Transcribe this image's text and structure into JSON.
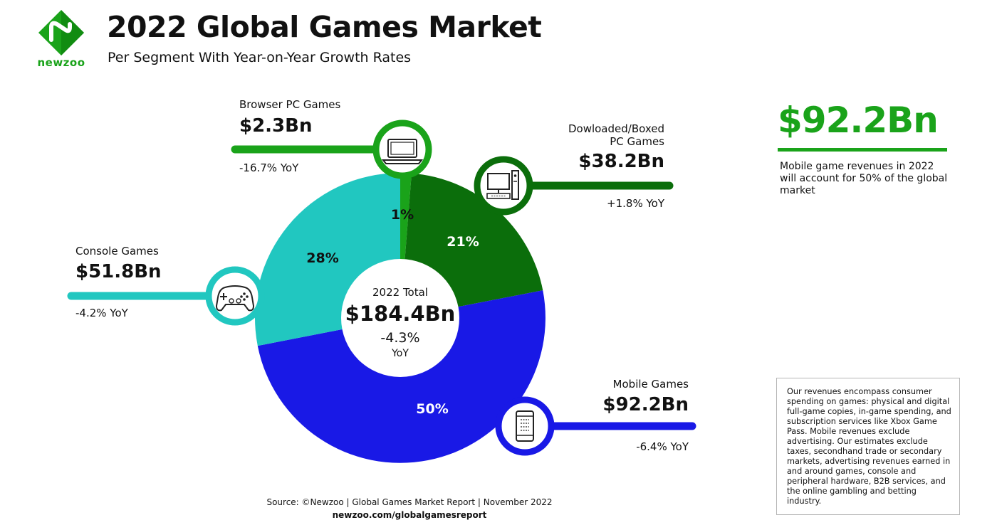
{
  "brand": {
    "name": "newzoo"
  },
  "header": {
    "title": "2022 Global Games Market",
    "subtitle": "Per Segment With Year-on-Year Growth Rates"
  },
  "colors": {
    "brand_green": "#1aa31a",
    "browser": "#1aa31a",
    "downloaded": "#0b6e0b",
    "mobile": "#1919e6",
    "console": "#21c7c0"
  },
  "chart_data": {
    "type": "pie",
    "title": "2022 Global Games Market",
    "subtitle": "Per Segment With Year-on-Year Growth Rates",
    "categories": [
      "Browser PC Games",
      "Dowloaded/Boxed PC Games",
      "Mobile Games",
      "Console Games"
    ],
    "values": [
      2.3,
      38.2,
      92.2,
      51.8
    ],
    "value_labels": [
      "$2.3Bn",
      "$38.2Bn",
      "$92.2Bn",
      "$51.8Bn"
    ],
    "percent_labels": [
      "1%",
      "21%",
      "50%",
      "28%"
    ],
    "yoy": [
      "-16.7% YoY",
      "+1.8% YoY",
      "-6.4% YoY",
      "-4.2% YoY"
    ],
    "colors": [
      "#1aa31a",
      "#0b6e0b",
      "#1919e6",
      "#21c7c0"
    ],
    "icons": [
      "laptop-icon",
      "desktop-pc-icon",
      "smartphone-icon",
      "gamepad-icon"
    ],
    "center": {
      "label": "2022 Total",
      "value": "$184.4Bn",
      "growth": "-4.3%",
      "growth_unit": "YoY"
    }
  },
  "segments": {
    "browser": {
      "name": "Browser PC Games",
      "value": "$2.3Bn",
      "yoy": "-16.7% YoY",
      "pct": "1%"
    },
    "downloaded": {
      "name_line1": "Dowloaded/Boxed",
      "name_line2": "PC Games",
      "value": "$38.2Bn",
      "yoy": "+1.8% YoY",
      "pct": "21%"
    },
    "mobile": {
      "name": "Mobile Games",
      "value": "$92.2Bn",
      "yoy": "-6.4% YoY",
      "pct": "50%"
    },
    "console": {
      "name": "Console Games",
      "value": "$51.8Bn",
      "yoy": "-4.2% YoY",
      "pct": "28%"
    }
  },
  "highlight": {
    "value": "$92.2Bn",
    "description": "Mobile game revenues in 2022 will account for 50% of the global market"
  },
  "note": "Our revenues encompass consumer spending on games: physical and digital full-game copies, in-game spending, and subscription services like Xbox Game Pass. Mobile revenues exclude advertising. Our estimates exclude taxes, secondhand trade or secondary markets, advertising revenues earned in and around games, console and peripheral hardware, B2B services, and the online gambling and betting industry.",
  "footer": {
    "source": "Source: ©Newzoo | Global Games Market Report | November 2022",
    "url": "newzoo.com/globalgamesreport"
  }
}
